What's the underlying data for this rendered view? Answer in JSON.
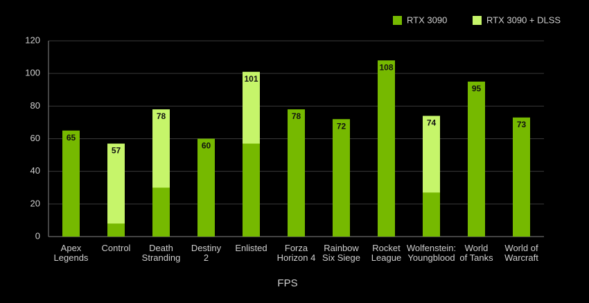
{
  "chart_data": {
    "type": "bar",
    "x_label": "FPS",
    "categories": [
      "Apex\nLegends",
      "Control",
      "Death\nStranding",
      "Destiny\n2",
      "Enlisted",
      "Forza\nHorizon 4",
      "Rainbow\nSix Siege",
      "Rocket\nLeague",
      "Wolfenstein:\nYoungblood",
      "World\nof Tanks",
      "World of\nWarcraft"
    ],
    "series": [
      {
        "name": "RTX 3090",
        "color": "#76b900",
        "values": [
          65,
          8,
          30,
          60,
          57,
          78,
          72,
          108,
          27,
          95,
          73
        ]
      },
      {
        "name": "RTX 3090 + DLSS",
        "color": "#c6f56a",
        "values": [
          null,
          57,
          78,
          null,
          101,
          null,
          null,
          null,
          74,
          null,
          null
        ]
      }
    ],
    "ylim": [
      0,
      120
    ],
    "yticks": [
      0,
      20,
      40,
      60,
      80,
      100,
      120
    ],
    "grid": true,
    "legend": "top-right"
  }
}
